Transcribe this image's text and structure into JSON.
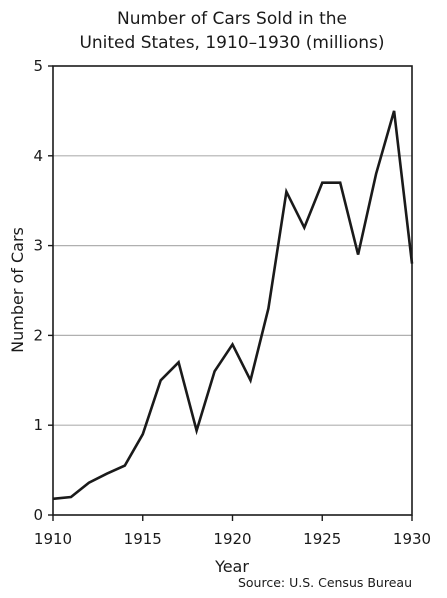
{
  "chart_data": {
    "type": "line",
    "title_lines": [
      "Number of Cars Sold in the",
      "United States, 1910–1930 (millions)"
    ],
    "xlabel": "Year",
    "ylabel": "Number of Cars",
    "source": "Source: U.S. Census Bureau",
    "xlim": [
      1910,
      1930
    ],
    "ylim": [
      0,
      5
    ],
    "x_ticks": [
      1910,
      1915,
      1920,
      1925,
      1930
    ],
    "x_tick_labels": [
      "1910",
      "1915",
      "1920",
      "1925",
      "1930"
    ],
    "y_ticks": [
      0,
      1,
      2,
      3,
      4,
      5
    ],
    "y_tick_labels": [
      "0",
      "1",
      "2",
      "3",
      "4",
      "5"
    ],
    "grid": "horizontal",
    "series": [
      {
        "x": [
          1910,
          1911,
          1912,
          1913,
          1914,
          1915,
          1916,
          1917,
          1918,
          1919,
          1920,
          1921,
          1922,
          1923,
          1924,
          1925,
          1926,
          1927,
          1928,
          1929,
          1930
        ],
        "values": [
          0.18,
          0.2,
          0.36,
          0.46,
          0.55,
          0.9,
          1.5,
          1.7,
          0.94,
          1.6,
          1.9,
          1.5,
          2.3,
          3.6,
          3.2,
          3.7,
          3.7,
          2.9,
          3.8,
          4.5,
          2.8
        ],
        "color": "#1a1a1a"
      }
    ]
  }
}
